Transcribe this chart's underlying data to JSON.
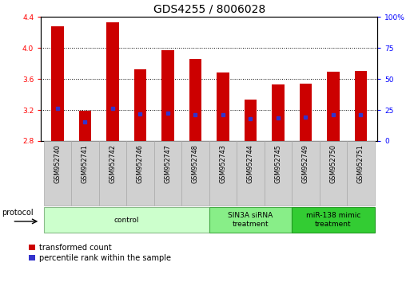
{
  "title": "GDS4255 / 8006028",
  "samples": [
    "GSM952740",
    "GSM952741",
    "GSM952742",
    "GSM952746",
    "GSM952747",
    "GSM952748",
    "GSM952743",
    "GSM952744",
    "GSM952745",
    "GSM952749",
    "GSM952750",
    "GSM952751"
  ],
  "transformed_count": [
    4.28,
    3.19,
    4.33,
    3.72,
    3.97,
    3.86,
    3.68,
    3.33,
    3.53,
    3.54,
    3.69,
    3.7
  ],
  "percentile_rank": [
    26.5,
    15.5,
    26.5,
    22.0,
    22.5,
    21.5,
    21.5,
    18.0,
    18.5,
    19.0,
    21.5,
    21.5
  ],
  "baseline": 2.8,
  "ylim_left": [
    2.8,
    4.4
  ],
  "ylim_right": [
    0,
    100
  ],
  "yticks_left": [
    2.8,
    3.2,
    3.6,
    4.0,
    4.4
  ],
  "yticks_right": [
    0,
    25,
    50,
    75,
    100
  ],
  "bar_color": "#cc0000",
  "blue_color": "#3333cc",
  "groups": [
    {
      "label": "control",
      "start": 0,
      "end": 6,
      "color": "#ccffcc",
      "border": "#88bb88"
    },
    {
      "label": "SIN3A siRNA\ntreatment",
      "start": 6,
      "end": 9,
      "color": "#88ee88",
      "border": "#44aa44"
    },
    {
      "label": "miR-138 mimic\ntreatment",
      "start": 9,
      "end": 12,
      "color": "#33cc33",
      "border": "#229922"
    }
  ],
  "protocol_label": "protocol",
  "legend_red": "transformed count",
  "legend_blue": "percentile rank within the sample",
  "bar_width": 0.45,
  "figsize": [
    5.13,
    3.54
  ],
  "dpi": 100,
  "title_fontsize": 10,
  "tick_fontsize": 6.5,
  "label_fontsize": 7.5
}
